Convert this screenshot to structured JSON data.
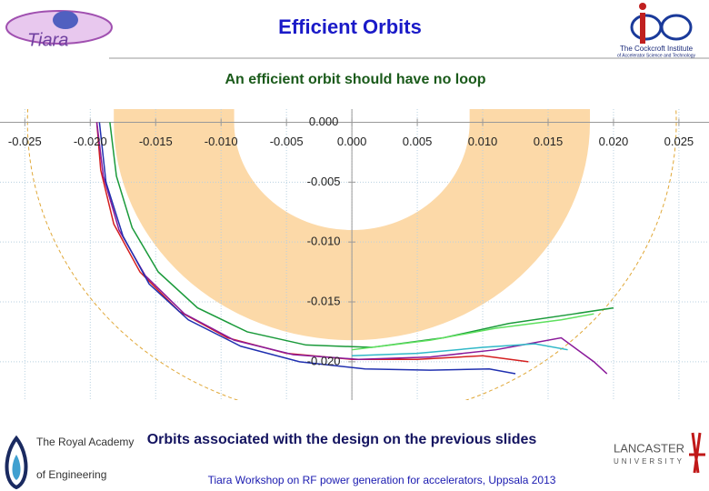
{
  "header": {
    "title": "Efficient Orbits",
    "subtitle": "An efficient orbit should have no loop"
  },
  "logos": {
    "tiara": "Tiara",
    "cockcroft": [
      "The Cockcroft Institute",
      "of Accelerator Science and Technology"
    ],
    "royal_academy": [
      "The Royal Academy",
      "of Engineering"
    ],
    "lancaster": [
      "LANCASTER",
      "UNIVERSITY"
    ]
  },
  "chart_data": {
    "type": "line",
    "xlim": [
      -0.0269,
      0.0273
    ],
    "ylim": [
      -0.0232,
      0.0011
    ],
    "xticks": [
      -0.025,
      {
        "value": -0.02,
        "label": "-0.020"
      },
      -0.015,
      {
        "value": -0.01,
        "label": "-0.010"
      },
      -0.005,
      {
        "value": 0,
        "label": "0.000"
      },
      0.005,
      {
        "value": 0.01,
        "label": "0.010"
      },
      0.015,
      {
        "value": 0.02,
        "label": "0.020"
      },
      0.025
    ],
    "yticks": [
      {
        "value": 0,
        "label": "0.000"
      },
      -0.005,
      {
        "value": -0.01,
        "label": "-0.010"
      },
      -0.015,
      {
        "value": -0.02,
        "label": "-0.020"
      }
    ],
    "grid": true,
    "region": {
      "inner_radius": 0.009,
      "outer_radius": 0.0182,
      "color": "#fcd9a8"
    },
    "boundary": {
      "radius": 0.0248,
      "color": "#e0a838"
    },
    "series": [
      {
        "color": "#d42020",
        "x": [
          -0.0195,
          -0.0192,
          -0.0182,
          -0.0162,
          -0.0132,
          -0.0095,
          -0.005,
          0,
          0.005,
          0.01,
          0.0135
        ],
        "y": [
          0,
          -0.004,
          -0.0085,
          -0.0125,
          -0.0158,
          -0.018,
          -0.0193,
          -0.0198,
          -0.0198,
          -0.0195,
          -0.02
        ]
      },
      {
        "color": "#8a1a9a",
        "x": [
          -0.0195,
          -0.019,
          -0.0178,
          -0.0158,
          -0.0128,
          -0.009,
          -0.0045,
          0.0005,
          0.006,
          0.011,
          0.016,
          0.0185,
          0.0195
        ],
        "y": [
          0,
          -0.0045,
          -0.009,
          -0.0128,
          -0.016,
          -0.0182,
          -0.0194,
          -0.0198,
          -0.0196,
          -0.019,
          -0.018,
          -0.02,
          -0.021
        ]
      },
      {
        "color": "#2030b0",
        "x": [
          -0.0193,
          -0.0188,
          -0.0175,
          -0.0155,
          -0.0125,
          -0.0085,
          -0.004,
          0.001,
          0.006,
          0.0105,
          0.0125
        ],
        "y": [
          0,
          -0.005,
          -0.0095,
          -0.0135,
          -0.0165,
          -0.0187,
          -0.02,
          -0.0206,
          -0.0207,
          -0.0206,
          -0.021
        ]
      },
      {
        "color": "#1a9a3a",
        "x": [
          -0.0185,
          -0.018,
          -0.0168,
          -0.0148,
          -0.0118,
          -0.008,
          -0.0035,
          0.0015,
          0.007,
          0.012,
          0.017,
          0.02
        ],
        "y": [
          0,
          -0.0045,
          -0.0088,
          -0.0125,
          -0.0155,
          -0.0175,
          -0.0186,
          -0.0188,
          -0.018,
          -0.0168,
          -0.016,
          -0.0155
        ]
      },
      {
        "color": "#30b8c8",
        "x": [
          0,
          0.005,
          0.01,
          0.014,
          0.0165
        ],
        "y": [
          -0.0195,
          -0.0193,
          -0.0188,
          -0.0185,
          -0.019
        ]
      },
      {
        "color": "#5ee05e",
        "x": [
          0,
          0.006,
          0.011,
          0.016,
          0.0185
        ],
        "y": [
          -0.019,
          -0.0182,
          -0.0172,
          -0.0165,
          -0.016
        ]
      }
    ]
  },
  "caption": "Orbits associated with the design on the previous slides",
  "footer": "Tiara Workshop on RF power generation for accelerators, Uppsala  2013"
}
